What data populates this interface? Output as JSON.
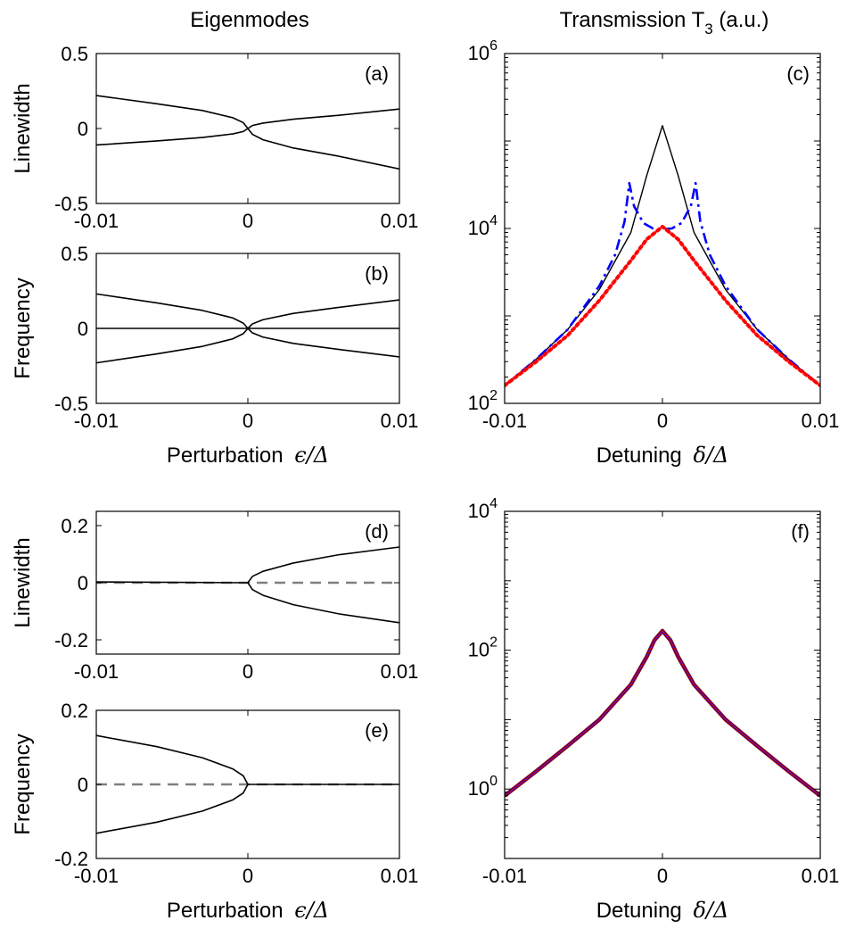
{
  "column_titles": {
    "left": "Eigenmodes",
    "right_main": "Transmission T",
    "right_sub": "3",
    "right_suffix": " (a.u.)"
  },
  "colors": {
    "black": "#000000",
    "blue": "#0000ff",
    "red": "#ff0000",
    "gray": "#808080",
    "darkred": "#8b0000"
  },
  "chart_data": [
    {
      "id": "a",
      "type": "line",
      "panel_label": "(a)",
      "ylabel": "Linewidth",
      "xlabel": "",
      "xlim": [
        -0.01,
        0.01
      ],
      "ylim": [
        -0.5,
        0.5
      ],
      "xticks": [
        "-0.01",
        "0",
        "0.01"
      ],
      "yticks": [
        "-0.5",
        "0",
        "0.5"
      ],
      "series": [
        {
          "color": "black",
          "style": "solid",
          "x": [
            -0.01,
            -0.006,
            -0.003,
            -0.001,
            -0.0003,
            0
          ],
          "y": [
            0.22,
            0.165,
            0.12,
            0.072,
            0.039,
            0
          ]
        },
        {
          "color": "black",
          "style": "solid",
          "x": [
            -0.01,
            -0.006,
            -0.003,
            -0.001,
            -0.0003,
            0
          ],
          "y": [
            -0.11,
            -0.083,
            -0.06,
            -0.036,
            -0.02,
            0
          ]
        },
        {
          "color": "black",
          "style": "solid",
          "x": [
            0,
            0.0003,
            0.001,
            0.003,
            0.006,
            0.01
          ],
          "y": [
            0,
            0.02,
            0.036,
            0.062,
            0.088,
            0.13
          ]
        },
        {
          "color": "black",
          "style": "solid",
          "x": [
            0,
            0.0003,
            0.001,
            0.003,
            0.006,
            0.01
          ],
          "y": [
            0,
            -0.039,
            -0.075,
            -0.13,
            -0.185,
            -0.27
          ]
        }
      ]
    },
    {
      "id": "b",
      "type": "line",
      "panel_label": "(b)",
      "ylabel": "Frequency",
      "xlabel": "Perturbation",
      "xlabel_math": "ϵ/Δ",
      "xlim": [
        -0.01,
        0.01
      ],
      "ylim": [
        -0.5,
        0.5
      ],
      "xticks": [
        "-0.01",
        "0",
        "0.01"
      ],
      "yticks": [
        "-0.5",
        "0",
        "0.5"
      ],
      "series": [
        {
          "color": "black",
          "style": "solid",
          "x": [
            -0.01,
            0.01
          ],
          "y": [
            0,
            0
          ]
        },
        {
          "color": "black",
          "style": "solid",
          "x": [
            -0.01,
            -0.006,
            -0.003,
            -0.001,
            -0.0003,
            0
          ],
          "y": [
            0.23,
            0.17,
            0.12,
            0.07,
            0.035,
            0
          ]
        },
        {
          "color": "black",
          "style": "solid",
          "x": [
            -0.01,
            -0.006,
            -0.003,
            -0.001,
            -0.0003,
            0
          ],
          "y": [
            -0.23,
            -0.17,
            -0.12,
            -0.07,
            -0.035,
            0
          ]
        },
        {
          "color": "black",
          "style": "solid",
          "x": [
            0,
            0.0003,
            0.001,
            0.003,
            0.006,
            0.01
          ],
          "y": [
            0,
            0.03,
            0.058,
            0.1,
            0.14,
            0.19
          ]
        },
        {
          "color": "black",
          "style": "solid",
          "x": [
            0,
            0.0003,
            0.001,
            0.003,
            0.006,
            0.01
          ],
          "y": [
            0,
            -0.03,
            -0.058,
            -0.1,
            -0.14,
            -0.19
          ]
        }
      ]
    },
    {
      "id": "c",
      "type": "line",
      "panel_label": "(c)",
      "xlabel": "Detuning",
      "xlabel_math": "δ/Δ",
      "log_y": true,
      "xlim": [
        -0.01,
        0.01
      ],
      "ylim": [
        100,
        1000000
      ],
      "xticks": [
        "-0.01",
        "0",
        "0.01"
      ],
      "yticks": [
        {
          "base": "10",
          "exp": "2",
          "value": 100
        },
        {
          "base": "10",
          "exp": "4",
          "value": 10000
        },
        {
          "base": "10",
          "exp": "6",
          "value": 1000000
        }
      ],
      "series": [
        {
          "color": "black",
          "style": "solid",
          "width": 1.4,
          "x": [
            -0.01,
            -0.008,
            -0.006,
            -0.004,
            -0.002,
            -0.001,
            0,
            0.001,
            0.002,
            0.004,
            0.006,
            0.008,
            0.01
          ],
          "y": [
            160,
            320,
            700,
            2000,
            9000,
            40000,
            150000,
            40000,
            9000,
            2000,
            700,
            320,
            160
          ]
        },
        {
          "color": "blue",
          "style": "dashdot",
          "width": 2.6,
          "x": [
            -0.01,
            -0.008,
            -0.006,
            -0.004,
            -0.003,
            -0.0024,
            -0.0021,
            -0.0018,
            -0.0012,
            -0.0006,
            0,
            0.0006,
            0.0012,
            0.0018,
            0.0021,
            0.0024,
            0.003,
            0.004,
            0.006,
            0.008,
            0.01
          ],
          "y": [
            160,
            320,
            700,
            2200,
            5000,
            12000,
            33000,
            18000,
            11500,
            10000,
            9800,
            10000,
            11500,
            18000,
            33000,
            12000,
            5000,
            2200,
            700,
            320,
            160
          ]
        },
        {
          "color": "red",
          "style": "dotted",
          "width": 4,
          "x": [
            -0.01,
            -0.008,
            -0.006,
            -0.004,
            -0.002,
            -0.001,
            0,
            0.001,
            0.002,
            0.004,
            0.006,
            0.008,
            0.01
          ],
          "y": [
            160,
            300,
            600,
            1500,
            4300,
            7500,
            10500,
            7500,
            4300,
            1500,
            600,
            300,
            160
          ]
        }
      ]
    },
    {
      "id": "d",
      "type": "line",
      "panel_label": "(d)",
      "ylabel": "Linewidth",
      "xlabel": "",
      "xlim": [
        -0.01,
        0.01
      ],
      "ylim": [
        -0.25,
        0.25
      ],
      "xticks": [
        "-0.01",
        "0",
        "0.01"
      ],
      "yticks": [
        "-0.2",
        "0",
        "0.2"
      ],
      "series": [
        {
          "color": "gray",
          "style": "dashed",
          "width": 2.4,
          "x": [
            -0.01,
            0.01
          ],
          "y": [
            0,
            0
          ]
        },
        {
          "color": "black",
          "style": "solid",
          "x": [
            -0.01,
            0
          ],
          "y": [
            0.003,
            0
          ]
        },
        {
          "color": "black",
          "style": "solid",
          "x": [
            0,
            0.0003,
            0.001,
            0.003,
            0.006,
            0.01
          ],
          "y": [
            0,
            0.022,
            0.04,
            0.069,
            0.098,
            0.125
          ]
        },
        {
          "color": "black",
          "style": "solid",
          "x": [
            0,
            0.0003,
            0.001,
            0.003,
            0.006,
            0.01
          ],
          "y": [
            0,
            -0.024,
            -0.044,
            -0.077,
            -0.109,
            -0.14
          ]
        }
      ]
    },
    {
      "id": "e",
      "type": "line",
      "panel_label": "(e)",
      "ylabel": "Frequency",
      "xlabel": "Perturbation",
      "xlabel_math": "ϵ/Δ",
      "xlim": [
        -0.01,
        0.01
      ],
      "ylim": [
        -0.2,
        0.2
      ],
      "xticks": [
        "-0.01",
        "0",
        "0.01"
      ],
      "yticks": [
        "-0.2",
        "0",
        "0.2"
      ],
      "series": [
        {
          "color": "gray",
          "style": "dashed",
          "width": 2.4,
          "x": [
            -0.01,
            0.01
          ],
          "y": [
            0,
            0
          ]
        },
        {
          "color": "black",
          "style": "solid",
          "x": [
            0,
            0.01
          ],
          "y": [
            0,
            0
          ]
        },
        {
          "color": "black",
          "style": "solid",
          "x": [
            -0.01,
            -0.006,
            -0.003,
            -0.001,
            -0.0003,
            0
          ],
          "y": [
            0.132,
            0.102,
            0.072,
            0.042,
            0.023,
            0
          ]
        },
        {
          "color": "black",
          "style": "solid",
          "x": [
            -0.01,
            -0.006,
            -0.003,
            -0.001,
            -0.0003,
            0
          ],
          "y": [
            -0.132,
            -0.102,
            -0.072,
            -0.042,
            -0.023,
            0
          ]
        }
      ]
    },
    {
      "id": "f",
      "type": "line",
      "panel_label": "(f)",
      "xlabel": "Detuning",
      "xlabel_math": "δ/Δ",
      "log_y": true,
      "xlim": [
        -0.01,
        0.01
      ],
      "ylim": [
        0.1,
        10000
      ],
      "xticks": [
        "-0.01",
        "0",
        "0.01"
      ],
      "yticks": [
        {
          "base": "10",
          "exp": "0",
          "value": 1
        },
        {
          "base": "10",
          "exp": "2",
          "value": 100
        },
        {
          "base": "10",
          "exp": "4",
          "value": 10000
        }
      ],
      "series": [
        {
          "color": "darkred",
          "style": "solid",
          "width": 4.5,
          "x": [
            -0.01,
            -0.008,
            -0.006,
            -0.004,
            -0.002,
            -0.001,
            -0.0005,
            0,
            0.0005,
            0.001,
            0.002,
            0.004,
            0.006,
            0.008,
            0.01
          ],
          "y": [
            0.8,
            1.8,
            4.2,
            10,
            32,
            80,
            140,
            190,
            140,
            80,
            32,
            10,
            4.2,
            1.8,
            0.8
          ]
        },
        {
          "color": "blue",
          "style": "solid",
          "width": 2.2,
          "x": [
            -0.01,
            -0.008,
            -0.006,
            -0.004,
            -0.002,
            -0.001,
            -0.0005,
            0,
            0.0005,
            0.001,
            0.002,
            0.004,
            0.006,
            0.008,
            0.01
          ],
          "y": [
            0.8,
            1.8,
            4.2,
            10,
            32,
            80,
            140,
            190,
            140,
            80,
            32,
            10,
            4.2,
            1.8,
            0.8
          ]
        },
        {
          "color": "red",
          "style": "solid",
          "width": 1.0,
          "x": [
            -0.01,
            -0.008,
            -0.006,
            -0.004,
            -0.002,
            -0.001,
            -0.0005,
            0,
            0.0005,
            0.001,
            0.002,
            0.004,
            0.006,
            0.008,
            0.01
          ],
          "y": [
            0.8,
            1.8,
            4.2,
            10,
            32,
            80,
            140,
            190,
            140,
            80,
            32,
            10,
            4.2,
            1.8,
            0.8
          ]
        }
      ]
    }
  ]
}
